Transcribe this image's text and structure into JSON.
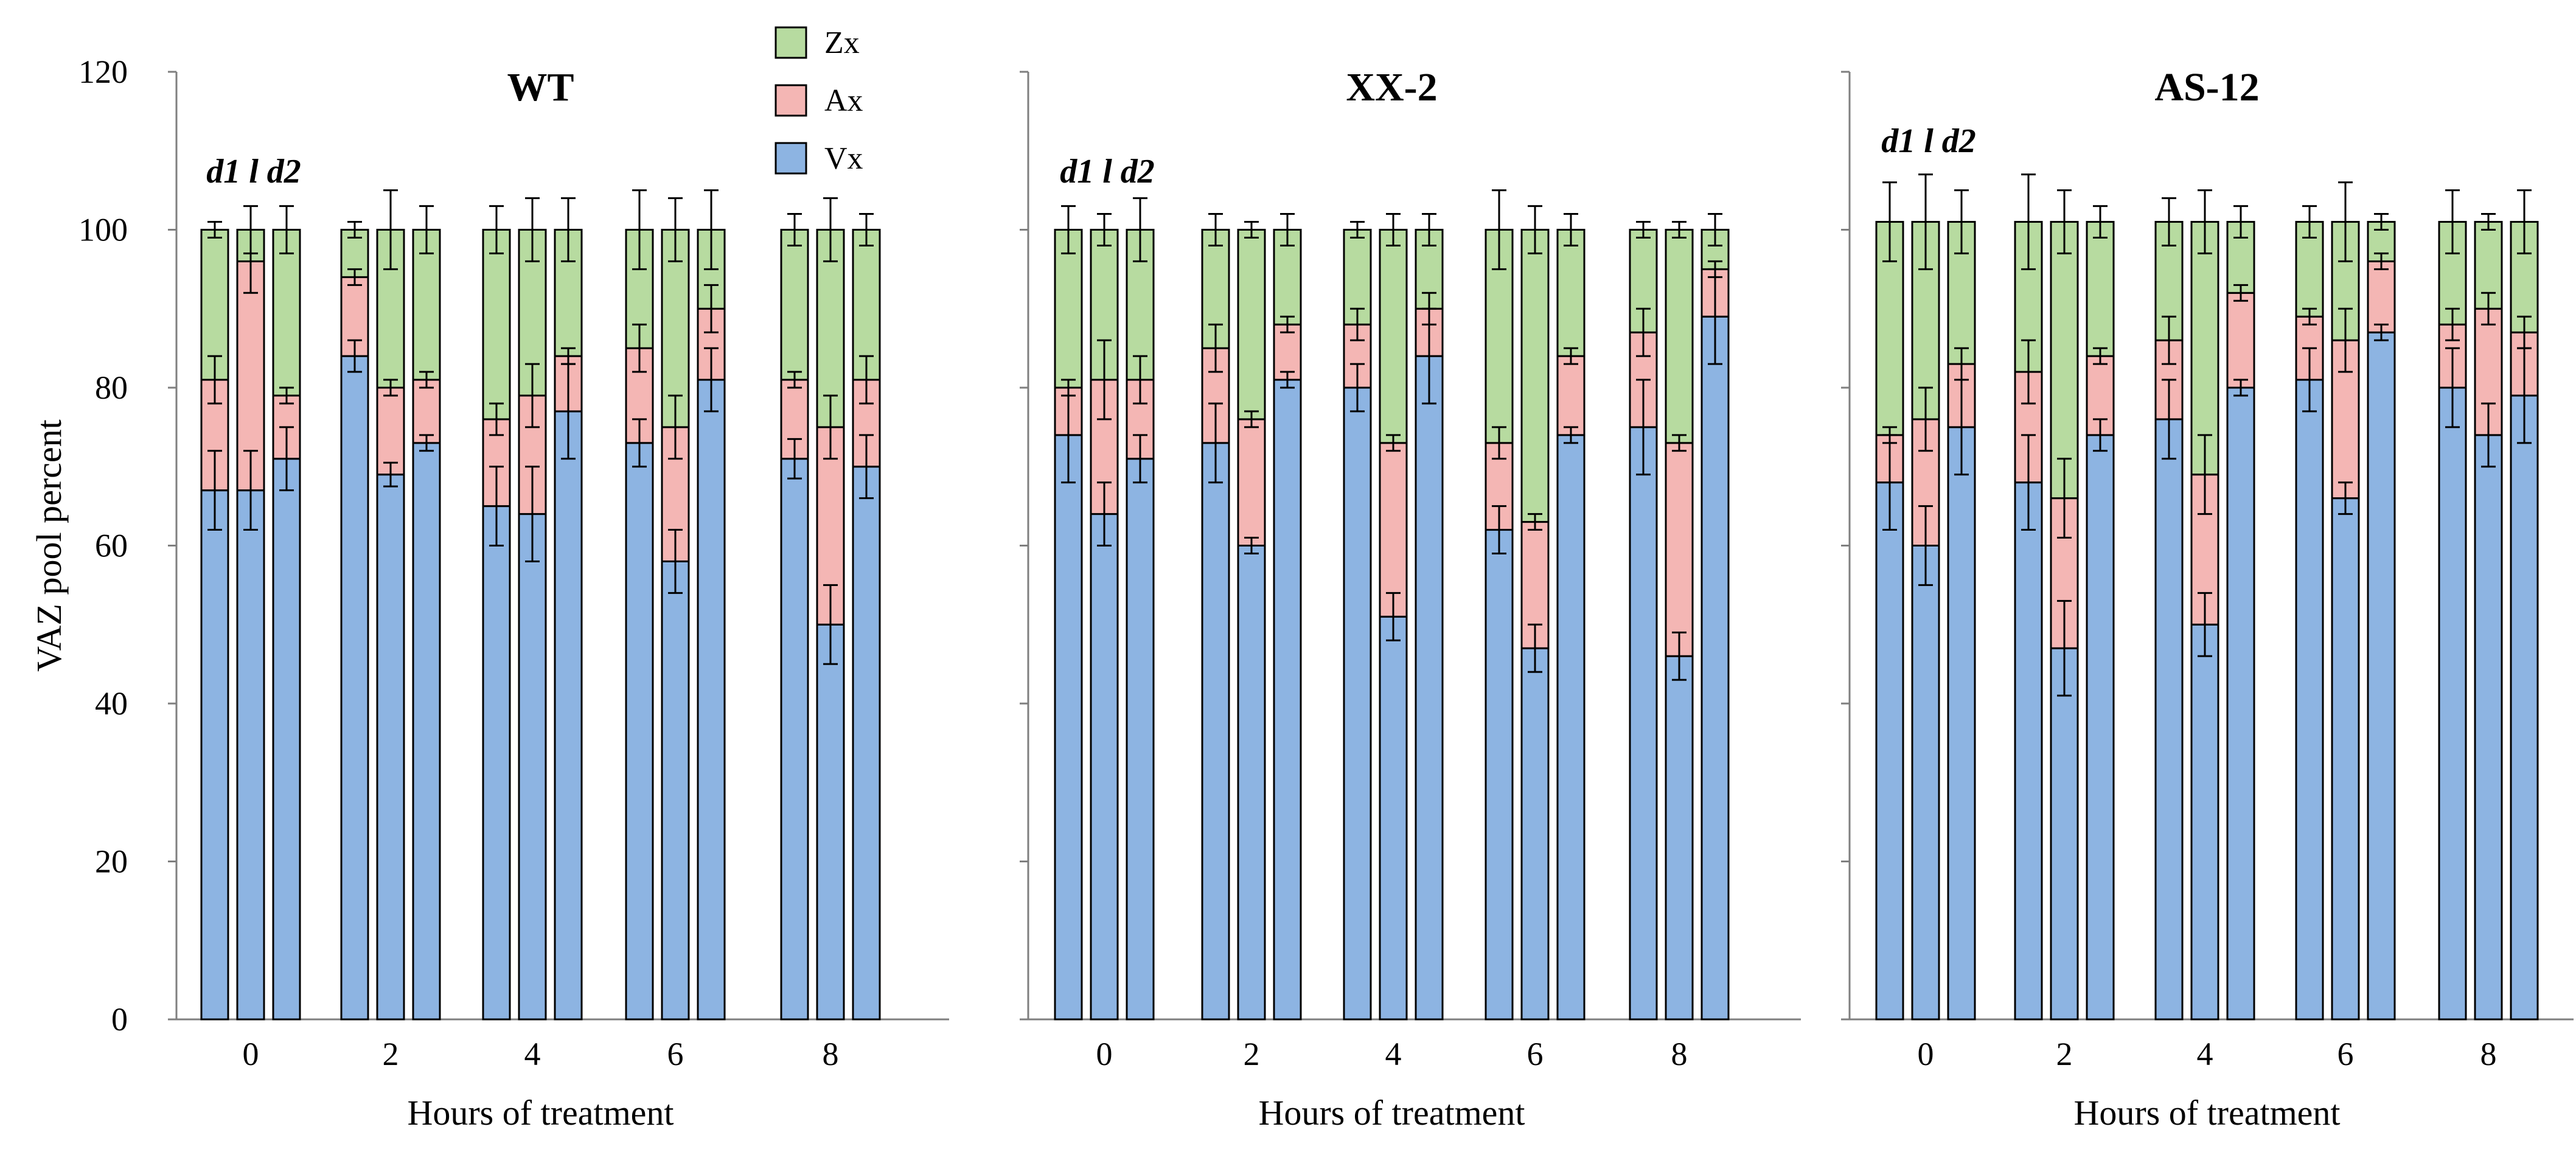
{
  "chart_data": {
    "type": "bar",
    "stacked": true,
    "ylabel": "VAZ pool percent",
    "xlabel": "Hours of treatment",
    "ylim": [
      0,
      120
    ],
    "yticks": [
      0,
      20,
      40,
      60,
      80,
      100,
      120
    ],
    "categories": [
      "0",
      "2",
      "4",
      "6",
      "8"
    ],
    "replicate_labels": [
      "d1",
      "l",
      "d2"
    ],
    "legend": {
      "position": "top-center",
      "entries": [
        {
          "name": "Zx",
          "color": "#b7dba0"
        },
        {
          "name": "Ax",
          "color": "#f4b6b4"
        },
        {
          "name": "Vx",
          "color": "#8db4e2"
        }
      ]
    },
    "panels": [
      {
        "title": "WT",
        "show_yticks": true,
        "vx": [
          [
            67,
            67,
            71
          ],
          [
            84,
            69,
            73
          ],
          [
            65,
            64,
            77
          ],
          [
            73,
            58,
            81
          ],
          [
            71,
            50,
            70
          ]
        ],
        "ax": [
          [
            14,
            29,
            8
          ],
          [
            10,
            11,
            8
          ],
          [
            11,
            15,
            7
          ],
          [
            12,
            17,
            9
          ],
          [
            10,
            25,
            11
          ]
        ],
        "zx": [
          [
            19,
            4,
            21
          ],
          [
            6,
            20,
            19
          ],
          [
            24,
            21,
            16
          ],
          [
            15,
            25,
            10
          ],
          [
            19,
            25,
            19
          ]
        ],
        "vx_err": [
          [
            5,
            5,
            4
          ],
          [
            2,
            1.5,
            1
          ],
          [
            5,
            6,
            6
          ],
          [
            3,
            4,
            4
          ],
          [
            2.5,
            5,
            4
          ]
        ],
        "ax_err": [
          [
            3,
            4,
            1
          ],
          [
            1,
            1,
            1
          ],
          [
            2,
            4,
            1
          ],
          [
            3,
            4,
            3
          ],
          [
            1,
            4,
            3
          ]
        ],
        "zx_err": [
          [
            1,
            3,
            3
          ],
          [
            1,
            5,
            3
          ],
          [
            3,
            4,
            4
          ],
          [
            5,
            4,
            5
          ],
          [
            2,
            4,
            2
          ]
        ]
      },
      {
        "title": "XX-2",
        "show_yticks": false,
        "vx": [
          [
            74,
            64,
            71
          ],
          [
            73,
            60,
            81
          ],
          [
            80,
            51,
            84
          ],
          [
            62,
            47,
            74
          ],
          [
            75,
            46,
            89
          ]
        ],
        "ax": [
          [
            6,
            17,
            10
          ],
          [
            12,
            16,
            7
          ],
          [
            8,
            22,
            6
          ],
          [
            11,
            16,
            10
          ],
          [
            12,
            27,
            6
          ]
        ],
        "zx": [
          [
            20,
            19,
            19
          ],
          [
            15,
            24,
            12
          ],
          [
            12,
            27,
            10
          ],
          [
            27,
            37,
            16
          ],
          [
            13,
            27,
            5
          ]
        ],
        "vx_err": [
          [
            6,
            4,
            3
          ],
          [
            5,
            1,
            1
          ],
          [
            3,
            3,
            6
          ],
          [
            3,
            3,
            1
          ],
          [
            6,
            3,
            6
          ]
        ],
        "ax_err": [
          [
            1,
            5,
            3
          ],
          [
            3,
            1,
            1
          ],
          [
            2,
            1,
            2
          ],
          [
            2,
            1,
            1
          ],
          [
            3,
            1,
            1
          ]
        ],
        "zx_err": [
          [
            3,
            2,
            4
          ],
          [
            2,
            1,
            2
          ],
          [
            1,
            2,
            2
          ],
          [
            5,
            3,
            2
          ],
          [
            1,
            1,
            2
          ]
        ]
      },
      {
        "title": "AS-12",
        "show_yticks": false,
        "vx": [
          [
            68,
            60,
            75
          ],
          [
            68,
            47,
            74
          ],
          [
            76,
            50,
            80
          ],
          [
            81,
            66,
            87
          ],
          [
            80,
            74,
            79
          ]
        ],
        "ax": [
          [
            6,
            16,
            8
          ],
          [
            14,
            19,
            10
          ],
          [
            10,
            19,
            12
          ],
          [
            8,
            20,
            9
          ],
          [
            8,
            16,
            8
          ]
        ],
        "zx": [
          [
            27,
            25,
            18
          ],
          [
            19,
            35,
            17
          ],
          [
            15,
            32,
            9
          ],
          [
            12,
            15,
            5
          ],
          [
            13,
            11,
            14
          ]
        ],
        "vx_err": [
          [
            6,
            5,
            6
          ],
          [
            6,
            6,
            2
          ],
          [
            5,
            4,
            1
          ],
          [
            4,
            2,
            1
          ],
          [
            5,
            4,
            6
          ]
        ],
        "ax_err": [
          [
            1,
            4,
            2
          ],
          [
            4,
            5,
            1
          ],
          [
            3,
            5,
            1
          ],
          [
            1,
            4,
            1
          ],
          [
            2,
            2,
            2
          ]
        ],
        "zx_err": [
          [
            5,
            6,
            4
          ],
          [
            6,
            4,
            2
          ],
          [
            3,
            4,
            2
          ],
          [
            2,
            5,
            1
          ],
          [
            4,
            1,
            4
          ]
        ]
      }
    ]
  }
}
